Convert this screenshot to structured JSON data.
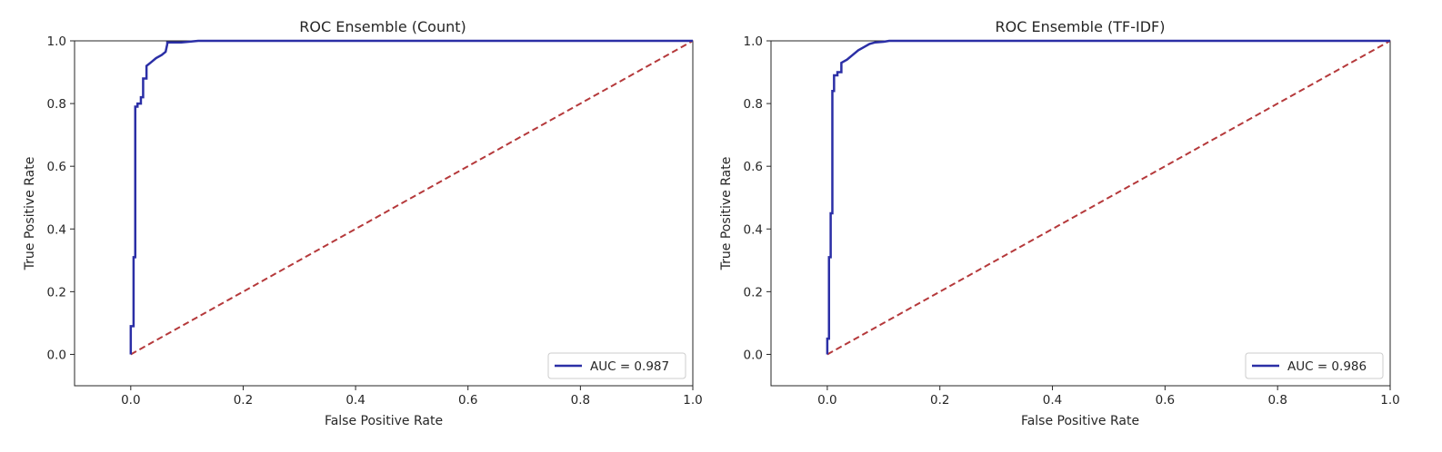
{
  "chart_data": [
    {
      "type": "line",
      "title": "ROC Ensemble (Count)",
      "xlabel": "False Positive Rate",
      "ylabel": "True Positive Rate",
      "xlim": [
        -0.1,
        1.0
      ],
      "ylim": [
        -0.1,
        1.0
      ],
      "xticks": [
        "0.0",
        "0.2",
        "0.4",
        "0.6",
        "0.8",
        "1.0"
      ],
      "yticks": [
        "0.0",
        "0.2",
        "0.4",
        "0.6",
        "0.8",
        "1.0"
      ],
      "grid": false,
      "legend_position": "lower-right",
      "colors": {
        "roc": "#2b2fa6",
        "baseline": "#b5393b"
      },
      "series": [
        {
          "name": "AUC = 0.987",
          "style": "solid",
          "x": [
            0.0,
            0.0,
            0.005,
            0.005,
            0.008,
            0.008,
            0.012,
            0.012,
            0.018,
            0.018,
            0.022,
            0.022,
            0.028,
            0.028,
            0.035,
            0.045,
            0.055,
            0.062,
            0.065,
            0.065,
            0.09,
            0.12,
            0.3,
            0.6,
            1.0
          ],
          "y": [
            0.0,
            0.09,
            0.09,
            0.31,
            0.31,
            0.79,
            0.79,
            0.8,
            0.8,
            0.82,
            0.82,
            0.88,
            0.88,
            0.92,
            0.93,
            0.945,
            0.955,
            0.965,
            0.99,
            0.995,
            0.995,
            1.0,
            1.0,
            1.0,
            1.0
          ]
        },
        {
          "style": "dashed",
          "x": [
            0.0,
            1.0
          ],
          "y": [
            0.0,
            1.0
          ]
        }
      ]
    },
    {
      "type": "line",
      "title": "ROC Ensemble (TF-IDF)",
      "xlabel": "False Positive Rate",
      "ylabel": "True Positive Rate",
      "xlim": [
        -0.1,
        1.0
      ],
      "ylim": [
        -0.1,
        1.0
      ],
      "xticks": [
        "0.0",
        "0.2",
        "0.4",
        "0.6",
        "0.8",
        "1.0"
      ],
      "yticks": [
        "0.0",
        "0.2",
        "0.4",
        "0.6",
        "0.8",
        "1.0"
      ],
      "grid": false,
      "legend_position": "lower-right",
      "colors": {
        "roc": "#2b2fa6",
        "baseline": "#b5393b"
      },
      "series": [
        {
          "name": "AUC = 0.986",
          "style": "solid",
          "x": [
            0.0,
            0.0,
            0.003,
            0.003,
            0.006,
            0.006,
            0.009,
            0.009,
            0.012,
            0.012,
            0.018,
            0.018,
            0.025,
            0.025,
            0.035,
            0.045,
            0.055,
            0.065,
            0.075,
            0.085,
            0.1,
            0.11,
            0.3,
            0.6,
            1.0
          ],
          "y": [
            0.0,
            0.05,
            0.05,
            0.31,
            0.31,
            0.45,
            0.45,
            0.84,
            0.84,
            0.89,
            0.89,
            0.9,
            0.9,
            0.93,
            0.94,
            0.955,
            0.97,
            0.98,
            0.99,
            0.995,
            0.997,
            1.0,
            1.0,
            1.0,
            1.0
          ]
        },
        {
          "style": "dashed",
          "x": [
            0.0,
            1.0
          ],
          "y": [
            0.0,
            1.0
          ]
        }
      ]
    }
  ]
}
